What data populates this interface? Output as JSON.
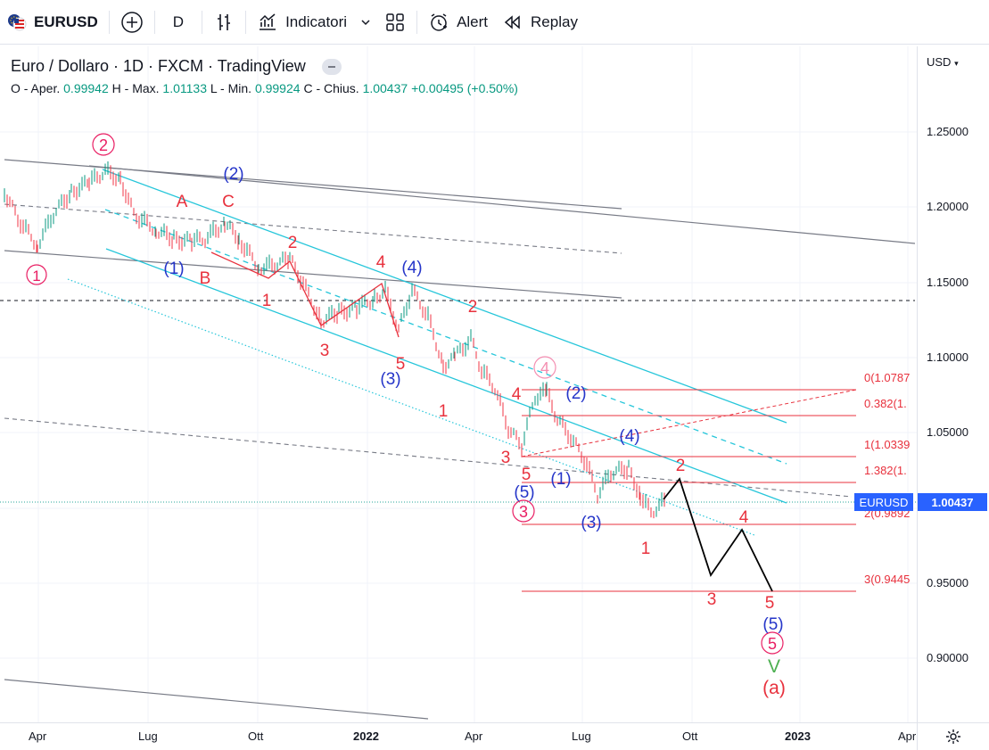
{
  "toolbar": {
    "symbol": "EURUSD",
    "interval": "D",
    "indicators_label": "Indicatori",
    "alert_label": "Alert",
    "replay_label": "Replay"
  },
  "legend": {
    "title": "Euro / Dollaro · 1D · FXCM · TradingView",
    "open_label": "O - Aper.",
    "open": "0.99942",
    "high_label": "H - Max.",
    "high": "1.01133",
    "low_label": "L - Min.",
    "low": "0.99924",
    "close_label": "C - Chius.",
    "close": "1.00437",
    "change": "+0.00495 (+0.50%)"
  },
  "price_scale": {
    "currency": "USD",
    "ticks": [
      "1.25000",
      "1.20000",
      "1.15000",
      "1.10000",
      "1.05000",
      "1.00000",
      "0.95000",
      "0.90000"
    ],
    "last_price": "1.00437",
    "last_symbol": "EURUSD"
  },
  "time_scale": {
    "ticks": [
      "Apr",
      "Lug",
      "Ott",
      "2022",
      "Apr",
      "Lug",
      "Ott",
      "2023",
      "Apr"
    ]
  },
  "fib_labels": [
    "0(1.0787",
    "0.382(1.",
    "1(1.0339",
    "1.382(1.",
    "2(0.9892",
    "3(0.9445"
  ],
  "wave_labels": {
    "circled": [
      "1",
      "2",
      "4",
      "3",
      "5"
    ],
    "blue": [
      "(2)",
      "(1)",
      "(4)",
      "(3)",
      "(2)",
      "(4)",
      "(5)",
      "(1)",
      "(3)",
      "(5)"
    ],
    "red": [
      "A",
      "C",
      "B",
      "2",
      "1",
      "4",
      "3",
      "5",
      "2",
      "1",
      "4",
      "3",
      "5",
      "2",
      "1",
      "4",
      "3",
      "5",
      "(a)"
    ],
    "green": [
      "V"
    ]
  },
  "colors": {
    "up": "#089981",
    "down": "#f23645",
    "accent": "#2962ff",
    "wave_red": "#e8313d",
    "wave_blue": "#2535c9",
    "wave_pink": "#e91e63",
    "channel": "#26c6da"
  }
}
